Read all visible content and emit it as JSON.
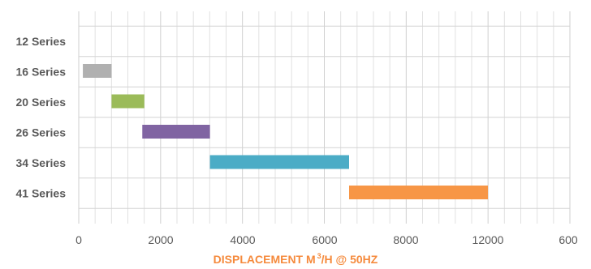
{
  "chart_data": {
    "type": "bar",
    "orientation": "horizontal",
    "style": "floating-range (gantt)",
    "categories": [
      "12 Series",
      "16 Series",
      "20 Series",
      "26 Series",
      "34 Series",
      "41 Series"
    ],
    "ranges": [
      null,
      [
        100,
        800
      ],
      [
        800,
        1600
      ],
      [
        1550,
        3200
      ],
      [
        3200,
        6600
      ],
      [
        6600,
        12200
      ]
    ],
    "colors": [
      "#b0b0b0",
      "#b0b0b0",
      "#9bbb59",
      "#8064a2",
      "#4bacc6",
      "#f79646"
    ],
    "xticks": [
      "0",
      "2000",
      "4000",
      "6000",
      "8000",
      "12000",
      "600"
    ],
    "xlabel": {
      "prefix": "DISPLACEMENT M",
      "superscript": "3",
      "suffix": "/H @ 50HZ"
    },
    "grid": true,
    "legend": "none"
  }
}
